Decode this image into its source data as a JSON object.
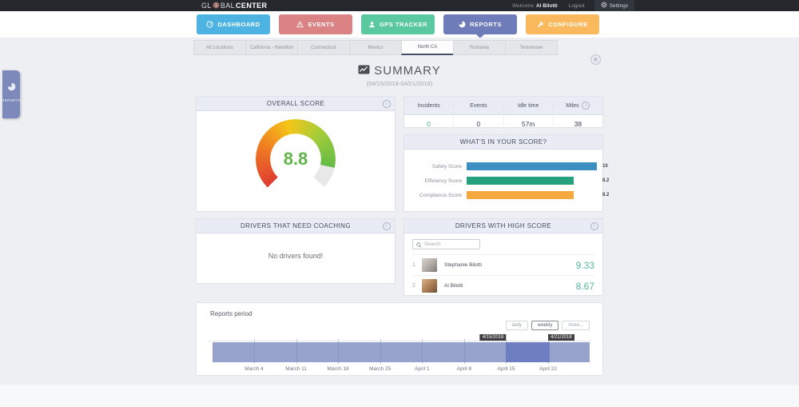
{
  "topbar": {
    "logo_pre": "GL",
    "logo_mid": "BAL",
    "logo_bold": "CENTER",
    "welcome_label": "Welcome",
    "user_name": "Al Bilotti",
    "logout_label": "Logout",
    "settings_label": "Settings"
  },
  "nav": {
    "active_index": 3,
    "buttons": [
      {
        "label": "DASHBOARD",
        "icon": "dashboard-icon",
        "color": "#4db3e2"
      },
      {
        "label": "EVENTS",
        "icon": "warning-icon",
        "color": "#db8384"
      },
      {
        "label": "GPS TRACKER",
        "icon": "person-icon",
        "color": "#5bc9a0"
      },
      {
        "label": "REPORTS",
        "icon": "pie-icon",
        "color": "#6e7cb9"
      },
      {
        "label": "CONFIGURE",
        "icon": "wrench-icon",
        "color": "#fab95d"
      }
    ]
  },
  "tabs": {
    "items": [
      "All Locations",
      "California - Hamilton",
      "Connecticut",
      "Mexico",
      "North CA",
      "Romania",
      "Tennessee"
    ],
    "active": "North CA"
  },
  "sidebar_flap": {
    "label": "REPORTS"
  },
  "summary": {
    "title": "SUMMARY",
    "date_range": "(04/15/2018-04/21/2018)"
  },
  "overall_score": {
    "title": "OVERALL SCORE",
    "value_label": "8.8",
    "chart_data": {
      "type": "gauge",
      "value": 8.8,
      "min": 0,
      "max": 10,
      "sweep_deg": 270,
      "colors": [
        "#e03c31",
        "#ef7d22",
        "#f5c518",
        "#a8cd39",
        "#63bb46"
      ],
      "rest_color": "#e8e8e8"
    }
  },
  "stats": {
    "headers": [
      "Incidents",
      "Events",
      "Idle time",
      "Miles"
    ],
    "values": [
      "0",
      "0",
      "57m",
      "38"
    ],
    "green_value_index": 0
  },
  "score_breakdown": {
    "title": "WHAT'S IN YOUR SCORE?",
    "chart_data": {
      "type": "bar",
      "orientation": "horizontal",
      "categories": [
        "Safety Score",
        "Efficiency Score",
        "Compliance Score"
      ],
      "values": [
        10,
        8.2,
        8.2
      ],
      "value_labels": [
        "10",
        "8.2",
        "8.2"
      ],
      "colors": [
        "#3d8ec1",
        "#26a17d",
        "#f4a83d"
      ],
      "xlim": [
        0,
        10
      ]
    }
  },
  "coaching": {
    "title": "DRIVERS THAT NEED COACHING",
    "empty_message": "No drivers found!"
  },
  "high_score": {
    "title": "DRIVERS WITH HIGH SCORE",
    "search_placeholder": "Search",
    "drivers": [
      {
        "rank": "1",
        "name": "Stephanie Bilotti",
        "score": "9.33"
      },
      {
        "rank": "2",
        "name": "Al Bilotti",
        "score": "8.67"
      }
    ],
    "score_color": "#52b79b"
  },
  "reports_period": {
    "title": "Reports period",
    "buttons": [
      "daily",
      "weekly",
      "more..."
    ],
    "active_button": "weekly",
    "chart_data": {
      "type": "timeline",
      "x_labels": [
        "March 4",
        "March 11",
        "March 18",
        "March 25",
        "April 1",
        "April 8",
        "April 15",
        "April 22"
      ],
      "band_color": "#7d8bc0",
      "selection_color": "#6d7fc0",
      "selection": {
        "start_label": "April 15",
        "end_label": "April 22",
        "start_index": 6,
        "end_index": 7
      },
      "tooltips": [
        {
          "text": "4/15/2018",
          "at_index": 6,
          "side": "start"
        },
        {
          "text": "4/21/2018",
          "at_index": 7,
          "side": "end"
        }
      ]
    }
  }
}
